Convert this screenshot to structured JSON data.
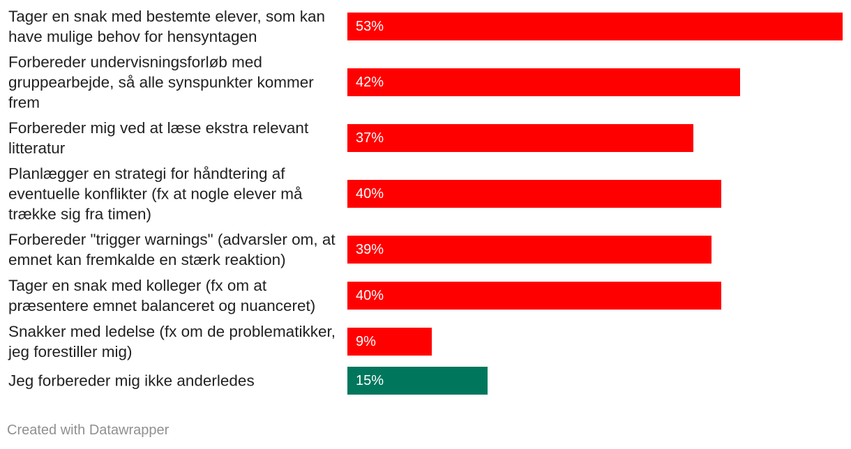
{
  "chart_data": {
    "type": "bar",
    "orientation": "horizontal",
    "categories": [
      "Tager en snak med bestemte elever, som kan have mulige behov for hensyntagen",
      "Forbereder undervisningsforløb med gruppearbejde, så alle synspunkter kommer frem",
      "Forbereder mig ved at læse ekstra relevant litteratur",
      "Planlægger en strategi for håndtering af eventuelle konflikter (fx at nogle elever må trække sig fra timen)",
      "Forbereder \"trigger warnings\" (advarsler om, at emnet kan fremkalde en stærk reaktion)",
      "Tager en snak med kolleger (fx om at præsentere emnet balanceret og nuanceret)",
      "Snakker med ledelse (fx om de problematikker, jeg forestiller mig)",
      "Jeg forbereder mig ikke anderledes"
    ],
    "values": [
      53,
      42,
      37,
      40,
      39,
      40,
      9,
      15
    ],
    "value_labels": [
      "53%",
      "42%",
      "37%",
      "40%",
      "39%",
      "40%",
      "9%",
      "15%"
    ],
    "bar_colors": [
      "#ff0000",
      "#ff0000",
      "#ff0000",
      "#ff0000",
      "#ff0000",
      "#ff0000",
      "#ff0000",
      "#00775d"
    ],
    "xlim": [
      0,
      53
    ],
    "grid": false,
    "legend": "none"
  },
  "footer": {
    "credit": "Created with Datawrapper"
  }
}
